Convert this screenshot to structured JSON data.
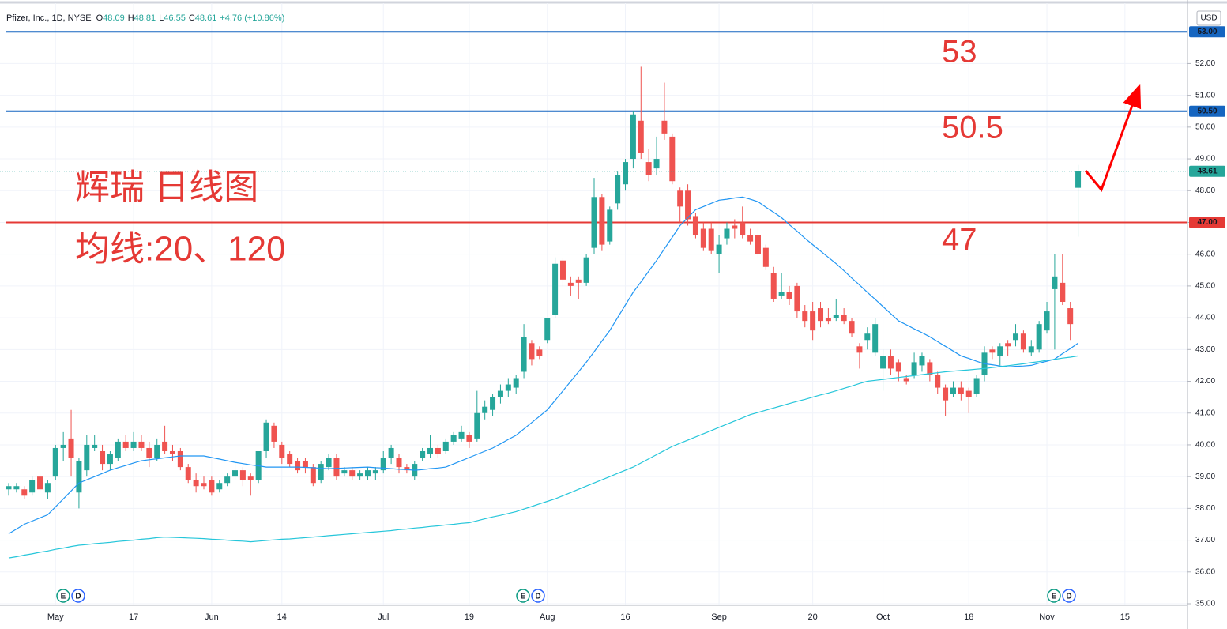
{
  "header": {
    "name": "Pfizer, Inc., 1D, NYSE",
    "change": "+4.76 (+10.86%)",
    "currency": "USD"
  },
  "chart_data": {
    "type": "candlestick",
    "ohlc_labels": [
      "O",
      "H",
      "L",
      "C"
    ],
    "categories": [
      null,
      null,
      null,
      null,
      null,
      null,
      "May",
      null,
      null,
      null,
      null,
      null,
      null,
      null,
      null,
      null,
      "17",
      null,
      null,
      null,
      null,
      null,
      null,
      null,
      null,
      null,
      "Jun",
      null,
      null,
      null,
      null,
      null,
      null,
      null,
      null,
      "14",
      null,
      null,
      null,
      null,
      null,
      null,
      null,
      null,
      null,
      null,
      null,
      null,
      "Jul",
      null,
      null,
      null,
      null,
      null,
      null,
      null,
      null,
      null,
      null,
      "19",
      null,
      null,
      null,
      null,
      null,
      null,
      null,
      null,
      null,
      "Aug",
      null,
      null,
      null,
      null,
      null,
      null,
      null,
      null,
      null,
      "16",
      null,
      null,
      null,
      null,
      null,
      null,
      null,
      null,
      null,
      null,
      null,
      "Sep",
      null,
      null,
      null,
      null,
      null,
      null,
      null,
      null,
      null,
      null,
      null,
      "20",
      null,
      null,
      null,
      null,
      null,
      null,
      null,
      null,
      "Oct",
      null,
      null,
      null,
      null,
      null,
      null,
      null,
      null,
      null,
      null,
      "18",
      null,
      null,
      null,
      null,
      null,
      null,
      null,
      null,
      null,
      "Nov",
      null,
      null,
      null,
      null,
      null,
      null,
      null,
      null,
      null,
      "15",
      null,
      null,
      null,
      null
    ],
    "ohlc": [
      [
        38.6,
        38.8,
        38.4,
        38.7
      ],
      [
        38.6,
        38.8,
        38.5,
        38.7
      ],
      [
        38.6,
        38.7,
        38.3,
        38.4
      ],
      [
        38.5,
        39.0,
        38.4,
        38.9
      ],
      [
        39.0,
        39.1,
        38.5,
        38.6
      ],
      [
        38.5,
        38.9,
        38.3,
        38.8
      ],
      [
        39.0,
        40.0,
        38.9,
        39.9
      ],
      [
        39.9,
        40.4,
        39.5,
        40.0
      ],
      [
        40.2,
        41.1,
        39.0,
        39.6
      ],
      [
        38.5,
        39.6,
        38.0,
        39.5
      ],
      [
        39.2,
        40.3,
        39.0,
        40.0
      ],
      [
        39.9,
        40.3,
        39.8,
        40.0
      ],
      [
        39.8,
        40.0,
        39.2,
        39.4
      ],
      [
        39.4,
        39.8,
        39.2,
        39.7
      ],
      [
        39.6,
        40.2,
        39.5,
        40.1
      ],
      [
        40.1,
        40.3,
        39.8,
        39.9
      ],
      [
        39.9,
        40.4,
        39.8,
        40.1
      ],
      [
        40.1,
        40.3,
        39.8,
        39.9
      ],
      [
        39.9,
        40.1,
        39.3,
        39.6
      ],
      [
        39.6,
        40.2,
        39.5,
        40.0
      ],
      [
        40.1,
        40.6,
        39.7,
        39.8
      ],
      [
        39.8,
        40.0,
        39.5,
        39.7
      ],
      [
        39.8,
        39.9,
        39.2,
        39.3
      ],
      [
        39.3,
        39.4,
        38.8,
        38.9
      ],
      [
        38.9,
        39.1,
        38.5,
        38.7
      ],
      [
        38.8,
        39.0,
        38.6,
        38.7
      ],
      [
        38.9,
        39.0,
        38.4,
        38.5
      ],
      [
        38.6,
        38.9,
        38.5,
        38.8
      ],
      [
        38.8,
        39.1,
        38.7,
        39.0
      ],
      [
        39.0,
        39.5,
        38.9,
        39.2
      ],
      [
        39.2,
        39.3,
        38.7,
        38.9
      ],
      [
        39.0,
        39.1,
        38.4,
        38.9
      ],
      [
        38.9,
        39.8,
        38.8,
        39.8
      ],
      [
        39.8,
        40.8,
        39.6,
        40.7
      ],
      [
        40.6,
        40.7,
        39.9,
        40.1
      ],
      [
        40.0,
        40.1,
        39.4,
        39.6
      ],
      [
        39.7,
        39.8,
        39.3,
        39.4
      ],
      [
        39.5,
        39.6,
        39.1,
        39.2
      ],
      [
        39.5,
        39.6,
        39.1,
        39.3
      ],
      [
        39.3,
        39.4,
        38.7,
        38.8
      ],
      [
        38.9,
        39.5,
        38.8,
        39.4
      ],
      [
        39.3,
        39.7,
        39.2,
        39.6
      ],
      [
        39.6,
        39.7,
        38.9,
        39.0
      ],
      [
        39.1,
        39.3,
        39.0,
        39.2
      ],
      [
        39.2,
        39.3,
        38.9,
        39.0
      ],
      [
        39.0,
        39.2,
        38.9,
        39.1
      ],
      [
        39.0,
        39.3,
        38.9,
        39.2
      ],
      [
        39.1,
        39.3,
        38.9,
        39.2
      ],
      [
        39.2,
        39.8,
        39.1,
        39.6
      ],
      [
        39.6,
        40.0,
        39.4,
        39.9
      ],
      [
        39.6,
        39.7,
        39.1,
        39.3
      ],
      [
        39.3,
        39.4,
        39.1,
        39.2
      ],
      [
        39.0,
        39.5,
        38.9,
        39.4
      ],
      [
        39.6,
        39.9,
        39.5,
        39.8
      ],
      [
        39.7,
        40.3,
        39.6,
        39.9
      ],
      [
        39.9,
        40.0,
        39.6,
        39.7
      ],
      [
        39.8,
        40.2,
        39.7,
        40.1
      ],
      [
        40.1,
        40.4,
        40.0,
        40.3
      ],
      [
        40.2,
        40.6,
        40.1,
        40.4
      ],
      [
        40.3,
        40.4,
        39.9,
        40.1
      ],
      [
        40.2,
        41.7,
        40.1,
        41.0
      ],
      [
        41.0,
        41.4,
        40.8,
        41.2
      ],
      [
        41.1,
        41.6,
        40.9,
        41.5
      ],
      [
        41.5,
        41.9,
        41.3,
        41.7
      ],
      [
        41.7,
        42.1,
        41.5,
        41.9
      ],
      [
        41.8,
        42.2,
        41.6,
        42.1
      ],
      [
        42.3,
        43.8,
        42.1,
        43.4
      ],
      [
        43.2,
        43.3,
        42.5,
        42.7
      ],
      [
        43.0,
        43.1,
        42.7,
        42.8
      ],
      [
        43.3,
        44.0,
        43.2,
        44.0
      ],
      [
        44.1,
        45.9,
        44.0,
        45.7
      ],
      [
        45.8,
        45.9,
        45.0,
        45.2
      ],
      [
        45.1,
        45.3,
        44.7,
        45.0
      ],
      [
        45.2,
        45.3,
        44.6,
        45.1
      ],
      [
        45.1,
        46.0,
        45.0,
        45.9
      ],
      [
        46.2,
        48.4,
        46.0,
        47.8
      ],
      [
        47.8,
        47.9,
        46.1,
        46.3
      ],
      [
        46.4,
        47.5,
        46.3,
        47.4
      ],
      [
        47.6,
        48.6,
        47.4,
        48.5
      ],
      [
        48.2,
        49.0,
        48.0,
        48.9
      ],
      [
        49.0,
        50.5,
        48.7,
        50.4
      ],
      [
        50.2,
        51.9,
        49.0,
        49.2
      ],
      [
        48.9,
        49.3,
        48.3,
        48.5
      ],
      [
        48.7,
        49.7,
        48.5,
        49.0
      ],
      [
        50.2,
        51.4,
        49.6,
        49.8
      ],
      [
        49.7,
        49.8,
        48.2,
        48.3
      ],
      [
        48.0,
        48.1,
        47.0,
        47.5
      ],
      [
        48.0,
        48.2,
        46.9,
        47.1
      ],
      [
        47.2,
        47.3,
        46.5,
        46.6
      ],
      [
        46.8,
        47.0,
        46.1,
        46.2
      ],
      [
        46.8,
        47.0,
        46.0,
        46.1
      ],
      [
        46.0,
        46.6,
        45.4,
        46.3
      ],
      [
        46.5,
        47.0,
        46.3,
        46.8
      ],
      [
        46.9,
        47.1,
        46.5,
        46.8
      ],
      [
        47.0,
        47.5,
        46.5,
        46.6
      ],
      [
        46.6,
        46.8,
        46.3,
        46.4
      ],
      [
        46.6,
        46.8,
        45.9,
        46.0
      ],
      [
        46.2,
        46.3,
        45.5,
        45.6
      ],
      [
        45.4,
        45.6,
        44.5,
        44.6
      ],
      [
        44.7,
        45.4,
        44.6,
        44.8
      ],
      [
        44.8,
        45.0,
        44.4,
        44.6
      ],
      [
        45.0,
        45.1,
        44.0,
        44.2
      ],
      [
        44.2,
        44.4,
        43.7,
        43.9
      ],
      [
        44.2,
        44.5,
        43.3,
        43.6
      ],
      [
        44.3,
        44.5,
        43.7,
        43.9
      ],
      [
        44.0,
        44.3,
        43.8,
        43.9
      ],
      [
        44.0,
        44.6,
        43.9,
        44.1
      ],
      [
        44.1,
        44.3,
        43.8,
        43.9
      ],
      [
        43.9,
        44.0,
        43.4,
        43.5
      ],
      [
        43.1,
        43.2,
        42.4,
        42.9
      ],
      [
        43.3,
        43.7,
        43.0,
        43.5
      ],
      [
        42.9,
        44.0,
        42.8,
        43.8
      ],
      [
        42.4,
        43.0,
        41.7,
        42.8
      ],
      [
        42.8,
        43.0,
        42.2,
        42.4
      ],
      [
        42.6,
        42.7,
        42.0,
        42.3
      ],
      [
        42.1,
        42.2,
        41.9,
        42.0
      ],
      [
        42.2,
        42.9,
        42.1,
        42.6
      ],
      [
        42.5,
        42.9,
        42.3,
        42.8
      ],
      [
        42.6,
        42.7,
        42.0,
        42.2
      ],
      [
        42.2,
        42.3,
        41.6,
        41.8
      ],
      [
        41.8,
        41.9,
        40.9,
        41.4
      ],
      [
        41.6,
        42.0,
        41.5,
        41.8
      ],
      [
        41.8,
        42.0,
        41.4,
        41.6
      ],
      [
        41.7,
        41.8,
        41.0,
        41.5
      ],
      [
        41.6,
        42.2,
        41.5,
        42.1
      ],
      [
        42.2,
        43.1,
        42.0,
        42.9
      ],
      [
        43.0,
        43.1,
        42.7,
        42.9
      ],
      [
        42.8,
        43.2,
        42.5,
        43.1
      ],
      [
        43.2,
        43.3,
        42.8,
        43.1
      ],
      [
        43.3,
        43.8,
        43.1,
        43.5
      ],
      [
        43.5,
        43.6,
        42.9,
        43.0
      ],
      [
        42.9,
        43.3,
        42.8,
        43.1
      ],
      [
        43.0,
        43.9,
        42.9,
        43.8
      ],
      [
        43.6,
        44.5,
        43.5,
        44.2
      ],
      [
        44.9,
        46.0,
        43.0,
        45.3
      ],
      [
        45.1,
        46.0,
        44.4,
        44.5
      ],
      [
        44.3,
        44.5,
        43.3,
        43.8
      ],
      [
        48.09,
        48.81,
        46.55,
        48.61
      ],
      null,
      null,
      null,
      null,
      null,
      null,
      null,
      null,
      null,
      null
    ],
    "up_color": "#26a69a",
    "down_color": "#ef5350",
    "lines": [
      {
        "color": "#2196f3",
        "values": [
          37.2,
          37.35,
          37.5,
          37.6,
          37.7,
          37.8,
          38.05,
          38.3,
          38.55,
          38.8,
          38.9,
          39.0,
          39.1,
          39.2,
          39.28,
          39.35,
          39.43,
          39.5,
          39.53,
          39.56,
          39.59,
          39.62,
          39.65,
          39.65,
          39.65,
          39.65,
          39.6,
          39.55,
          39.5,
          39.45,
          39.41,
          39.37,
          39.34,
          39.3,
          39.3,
          39.3,
          39.3,
          39.3,
          39.29,
          39.28,
          39.26,
          39.25,
          39.26,
          39.27,
          39.28,
          39.29,
          39.3,
          39.28,
          39.27,
          39.25,
          39.23,
          39.22,
          39.2,
          39.22,
          39.25,
          39.27,
          39.3,
          39.4,
          39.5,
          39.6,
          39.7,
          39.8,
          39.9,
          40.03,
          40.17,
          40.3,
          40.5,
          40.7,
          40.9,
          41.1,
          41.4,
          41.7,
          42.0,
          42.3,
          42.6,
          42.93,
          43.27,
          43.6,
          44.0,
          44.4,
          44.8,
          45.13,
          45.47,
          45.8,
          46.17,
          46.53,
          46.9,
          47.15,
          47.4,
          47.5,
          47.6,
          47.7,
          47.73,
          47.77,
          47.8,
          47.73,
          47.65,
          47.48,
          47.32,
          47.15,
          46.93,
          46.72,
          46.5,
          46.3,
          46.1,
          45.9,
          45.7,
          45.48,
          45.25,
          45.03,
          44.8,
          44.58,
          44.35,
          44.13,
          43.9,
          43.78,
          43.65,
          43.53,
          43.4,
          43.25,
          43.1,
          42.95,
          42.8,
          42.72,
          42.63,
          42.55,
          42.52,
          42.48,
          42.45,
          42.47,
          42.48,
          42.5,
          42.57,
          42.63,
          42.7,
          42.87,
          43.03,
          43.2,
          null,
          null,
          null,
          null,
          null,
          null,
          null,
          null,
          null,
          null
        ]
      },
      {
        "color": "#26c6da",
        "values": [
          36.44,
          36.48,
          36.53,
          36.57,
          36.62,
          36.66,
          36.71,
          36.75,
          36.8,
          36.84,
          36.86,
          36.89,
          36.91,
          36.93,
          36.96,
          36.98,
          37.0,
          37.03,
          37.05,
          37.08,
          37.1,
          37.09,
          37.08,
          37.07,
          37.06,
          37.05,
          37.03,
          37.02,
          37.0,
          36.98,
          36.97,
          36.95,
          36.97,
          36.99,
          37.01,
          37.03,
          37.04,
          37.06,
          37.08,
          37.1,
          37.12,
          37.14,
          37.16,
          37.18,
          37.2,
          37.22,
          37.24,
          37.26,
          37.28,
          37.3,
          37.33,
          37.35,
          37.38,
          37.4,
          37.43,
          37.45,
          37.48,
          37.5,
          37.53,
          37.55,
          37.61,
          37.67,
          37.73,
          37.78,
          37.84,
          37.9,
          37.98,
          38.06,
          38.14,
          38.22,
          38.3,
          38.4,
          38.5,
          38.6,
          38.7,
          38.8,
          38.9,
          39.0,
          39.1,
          39.2,
          39.3,
          39.43,
          39.56,
          39.69,
          39.82,
          39.95,
          40.05,
          40.15,
          40.25,
          40.35,
          40.45,
          40.55,
          40.65,
          40.75,
          40.85,
          40.95,
          41.02,
          41.09,
          41.16,
          41.23,
          41.3,
          41.37,
          41.43,
          41.5,
          41.57,
          41.63,
          41.7,
          41.78,
          41.85,
          41.93,
          42.0,
          42.03,
          42.06,
          42.09,
          42.12,
          42.15,
          42.18,
          42.21,
          42.24,
          42.27,
          42.3,
          42.32,
          42.34,
          42.36,
          42.38,
          42.4,
          42.43,
          42.46,
          42.49,
          42.52,
          42.55,
          42.59,
          42.62,
          42.66,
          42.69,
          42.73,
          42.76,
          42.8,
          null,
          null,
          null,
          null,
          null,
          null,
          null,
          null,
          null,
          null
        ]
      }
    ],
    "ylim": [
      35,
      54
    ],
    "yticks": [
      {
        "value": 35,
        "label": "35.00"
      },
      {
        "value": 36,
        "label": "36.00"
      },
      {
        "value": 37,
        "label": "37.00"
      },
      {
        "value": 38,
        "label": "38.00"
      },
      {
        "value": 39,
        "label": "39.00"
      },
      {
        "value": 40,
        "label": "40.00"
      },
      {
        "value": 41,
        "label": "41.00"
      },
      {
        "value": 42,
        "label": "42.00"
      },
      {
        "value": 43,
        "label": "43.00"
      },
      {
        "value": 44,
        "label": "44.00"
      },
      {
        "value": 45,
        "label": "45.00"
      },
      {
        "value": 46,
        "label": "46.00"
      },
      {
        "value": 47,
        "label": "47.00"
      },
      {
        "value": 48,
        "label": "48.00"
      },
      {
        "value": 49,
        "label": "49.00"
      },
      {
        "value": 50,
        "label": "50.00"
      },
      {
        "value": 51,
        "label": "51.00"
      },
      {
        "value": 52,
        "label": "52.00"
      }
    ],
    "grid": true,
    "levels": [
      {
        "value": 53,
        "label": "53.00",
        "color": "#1565c0"
      },
      {
        "value": 50.5,
        "label": "50.50",
        "color": "#1565c0"
      },
      {
        "value": 47,
        "label": "47.00",
        "color": "#e53935"
      }
    ],
    "annotations": [
      "53",
      "50.5",
      "47",
      "辉瑞 日线图",
      "均线:20、120"
    ],
    "event_markers": [
      [
        "E",
        "D"
      ],
      [
        "E",
        "D"
      ],
      [
        "E",
        "D"
      ]
    ]
  }
}
